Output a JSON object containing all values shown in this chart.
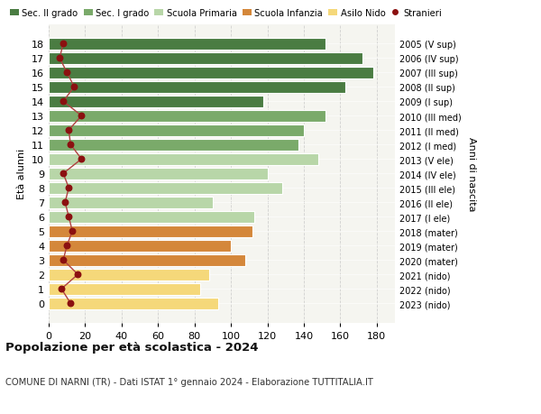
{
  "ages": [
    18,
    17,
    16,
    15,
    14,
    13,
    12,
    11,
    10,
    9,
    8,
    7,
    6,
    5,
    4,
    3,
    2,
    1,
    0
  ],
  "bar_values": [
    152,
    172,
    178,
    163,
    118,
    152,
    140,
    137,
    148,
    120,
    128,
    90,
    113,
    112,
    100,
    108,
    88,
    83,
    93
  ],
  "stranieri": [
    8,
    6,
    10,
    14,
    8,
    18,
    11,
    12,
    18,
    8,
    11,
    9,
    11,
    13,
    10,
    8,
    16,
    7,
    12
  ],
  "right_labels": [
    "2005 (V sup)",
    "2006 (IV sup)",
    "2007 (III sup)",
    "2008 (II sup)",
    "2009 (I sup)",
    "2010 (III med)",
    "2011 (II med)",
    "2012 (I med)",
    "2013 (V ele)",
    "2014 (IV ele)",
    "2015 (III ele)",
    "2016 (II ele)",
    "2017 (I ele)",
    "2018 (mater)",
    "2019 (mater)",
    "2020 (mater)",
    "2021 (nido)",
    "2022 (nido)",
    "2023 (nido)"
  ],
  "bar_colors": [
    "#4a7c42",
    "#4a7c42",
    "#4a7c42",
    "#4a7c42",
    "#4a7c42",
    "#7aaa6a",
    "#7aaa6a",
    "#7aaa6a",
    "#b8d6a8",
    "#b8d6a8",
    "#b8d6a8",
    "#b8d6a8",
    "#b8d6a8",
    "#d4873a",
    "#d4873a",
    "#d4873a",
    "#f5d87a",
    "#f5d87a",
    "#f5d87a"
  ],
  "stranieri_color": "#8b1010",
  "line_color": "#b04040",
  "title": "Popolazione per à scolastica - 2024",
  "title_text": "Popolazione per età scolastica - 2024",
  "subtitle": "COMUNE DI NARNI (TR) - Dati ISTAT 1° gennaio 2024 - Elaborazione TUTTITALIA.IT",
  "ylabel_left": "Età alunni",
  "ylabel_right": "Anni di nascita",
  "xlim": [
    0,
    190
  ],
  "xticks": [
    0,
    20,
    40,
    60,
    80,
    100,
    120,
    140,
    160,
    180
  ],
  "background_color": "#ffffff",
  "plot_bg": "#f5f5f0",
  "grid_color": "#cccccc",
  "legend_labels": [
    "Sec. II grado",
    "Sec. I grado",
    "Scuola Primaria",
    "Scuola Infanzia",
    "Asilo Nido",
    "Stranieri"
  ],
  "legend_colors": [
    "#4a7c42",
    "#7aaa6a",
    "#b8d6a8",
    "#d4873a",
    "#f5d87a",
    "#8b1010"
  ]
}
